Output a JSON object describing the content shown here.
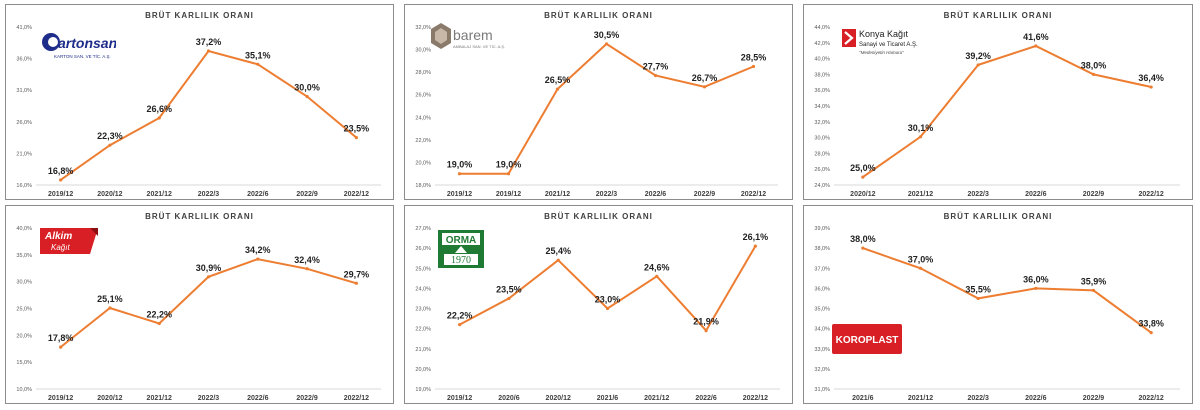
{
  "chart_data": [
    {
      "type": "line",
      "title": "BRÜT KARLILIK ORANI",
      "logo": {
        "name": "Kartonsan",
        "subtitle": "KARTON SAN. VE TİC. A.Ş."
      },
      "categories": [
        "2019/12",
        "2020/12",
        "2021/12",
        "2022/3",
        "2022/6",
        "2022/9",
        "2022/12"
      ],
      "values": [
        16.8,
        22.3,
        26.6,
        37.2,
        35.1,
        30.0,
        23.5
      ],
      "data_labels": [
        "16,8%",
        "22,3%",
        "26,6%",
        "37,2%",
        "35,1%",
        "30,0%",
        "23,5%"
      ],
      "y_ticks": [
        "16,0%",
        "21,0%",
        "26,0%",
        "31,0%",
        "36,0%",
        "41,0%"
      ],
      "ylim": [
        16,
        41
      ],
      "grid": false,
      "line_color": "#ed7d31"
    },
    {
      "type": "line",
      "title": "BRÜT KARLILIK ORANI",
      "logo": {
        "name": "barem",
        "subtitle": "AMBALAJ SAN. VE TİC. A.Ş."
      },
      "categories": [
        "2019/12",
        "2019/12",
        "2021/12",
        "2022/3",
        "2022/6",
        "2022/9",
        "2022/12"
      ],
      "values": [
        19.0,
        19.0,
        26.5,
        30.5,
        27.7,
        26.7,
        28.5
      ],
      "data_labels": [
        "19,0%",
        "19,0%",
        "26,5%",
        "30,5%",
        "27,7%",
        "26,7%",
        "28,5%"
      ],
      "y_ticks": [
        "18,0%",
        "20,0%",
        "22,0%",
        "24,0%",
        "26,0%",
        "28,0%",
        "30,0%",
        "32,0%"
      ],
      "ylim": [
        18,
        32
      ],
      "grid": false,
      "line_color": "#ed7d31"
    },
    {
      "type": "line",
      "title": "BRÜT KARLILIK ORANI",
      "logo": {
        "name": "Konya Kağıt",
        "line2": "Sanayi ve Ticaret A.Ş.",
        "tagline": "\"Medeniyetin Hamuru\""
      },
      "categories": [
        "2020/12",
        "2021/12",
        "2022/3",
        "2022/6",
        "2022/9",
        "2022/12"
      ],
      "values": [
        25.0,
        30.1,
        39.2,
        41.6,
        38.0,
        36.4
      ],
      "data_labels": [
        "25,0%",
        "30,1%",
        "39,2%",
        "41,6%",
        "38,0%",
        "36,4%"
      ],
      "y_ticks": [
        "24,0%",
        "26,0%",
        "28,0%",
        "30,0%",
        "32,0%",
        "34,0%",
        "36,0%",
        "38,0%",
        "40,0%",
        "42,0%",
        "44,0%"
      ],
      "ylim": [
        24,
        44
      ],
      "grid": false,
      "line_color": "#ed7d31"
    },
    {
      "type": "line",
      "title": "BRÜT KARLILIK ORANI",
      "logo": {
        "name": "Alkim",
        "subtitle": "Kağıt"
      },
      "categories": [
        "2019/12",
        "2020/12",
        "2021/12",
        "2022/3",
        "2022/6",
        "2022/9",
        "2022/12"
      ],
      "values": [
        17.8,
        25.1,
        22.2,
        30.9,
        34.2,
        32.4,
        29.7
      ],
      "data_labels": [
        "17,8%",
        "25,1%",
        "22,2%",
        "30,9%",
        "34,2%",
        "32,4%",
        "29,7%"
      ],
      "y_ticks": [
        "10,0%",
        "15,0%",
        "20,0%",
        "25,0%",
        "30,0%",
        "35,0%",
        "40,0%"
      ],
      "ylim": [
        10,
        40
      ],
      "grid": false,
      "line_color": "#ed7d31"
    },
    {
      "type": "line",
      "title": "BRÜT KARLILIK ORANI",
      "logo": {
        "name": "ORMA",
        "subtitle": "1970"
      },
      "categories": [
        "2019/12",
        "2020/6",
        "2020/12",
        "2021/6",
        "2021/12",
        "2022/6",
        "2022/12"
      ],
      "values": [
        22.2,
        23.5,
        25.4,
        23.0,
        24.6,
        21.9,
        26.1
      ],
      "data_labels": [
        "22,2%",
        "23,5%",
        "25,4%",
        "23,0%",
        "24,6%",
        "21,9%",
        "26,1%"
      ],
      "y_ticks": [
        "19,0%",
        "20,0%",
        "21,0%",
        "22,0%",
        "23,0%",
        "24,0%",
        "25,0%",
        "26,0%",
        "27,0%"
      ],
      "ylim": [
        19,
        27
      ],
      "grid": false,
      "line_color": "#ed7d31"
    },
    {
      "type": "line",
      "title": "BRÜT KARLILIK ORANI",
      "logo": {
        "name": "KOROPLAST"
      },
      "categories": [
        "2021/6",
        "2021/12",
        "2022/3",
        "2022/6",
        "2022/9",
        "2022/12"
      ],
      "values": [
        38.0,
        37.0,
        35.5,
        36.0,
        35.9,
        33.8
      ],
      "data_labels": [
        "38,0%",
        "37,0%",
        "35,5%",
        "36,0%",
        "35,9%",
        "33,8%"
      ],
      "y_ticks": [
        "31,0%",
        "32,0%",
        "33,0%",
        "34,0%",
        "35,0%",
        "36,0%",
        "37,0%",
        "38,0%",
        "39,0%"
      ],
      "ylim": [
        31,
        39
      ],
      "grid": false,
      "line_color": "#ed7d31"
    }
  ]
}
